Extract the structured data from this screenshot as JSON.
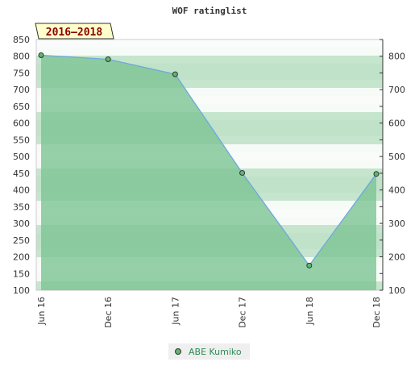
{
  "chart_data": {
    "type": "area",
    "title": "WOF ratinglist",
    "badge": "2016–2018",
    "categories": [
      "Jun 16",
      "Dec 16",
      "Jun 17",
      "Dec 17",
      "Jun 18",
      "Dec 18"
    ],
    "series": [
      {
        "name": "ABE Kumiko",
        "values": [
          803,
          791,
          746,
          451,
          174,
          448
        ]
      }
    ],
    "ylim": [
      100,
      850
    ],
    "left_ticks": [
      100,
      150,
      200,
      250,
      300,
      350,
      400,
      450,
      500,
      550,
      600,
      650,
      700,
      750,
      800,
      850
    ],
    "right_ticks": [
      100,
      200,
      300,
      400,
      500,
      600,
      700,
      800
    ],
    "legend_position": "bottom-center",
    "grid": false,
    "colors": {
      "area_fill": "#7cc493",
      "line": "#6fa8dc",
      "marker": "#5cb870",
      "band_dark": "#bfe2c8",
      "band_light": "#f4faf5",
      "legend_text": "#2e8b57",
      "badge_bg": "#ffffcc",
      "badge_text": "#8b0000"
    }
  }
}
